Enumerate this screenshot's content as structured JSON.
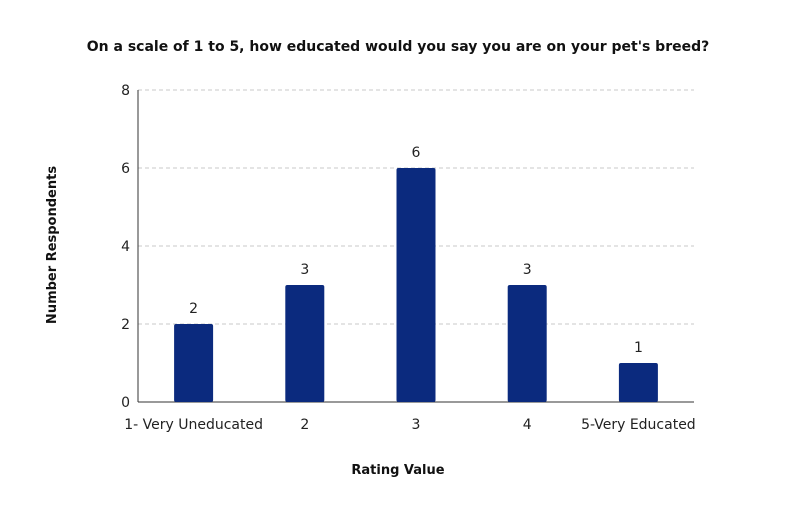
{
  "chart_data": {
    "type": "bar",
    "title": "On a scale of 1 to 5, how educated would you say you are on your pet's breed?",
    "xlabel": "Rating Value",
    "ylabel": "Number Respondents",
    "categories": [
      "1- Very Uneducated",
      "2",
      "3",
      "4",
      "5-Very Educated"
    ],
    "values": [
      2,
      3,
      6,
      3,
      1
    ],
    "data_labels": [
      "2",
      "3",
      "6",
      "3",
      "1"
    ],
    "ylim": [
      0,
      8
    ],
    "yticks": [
      0,
      2,
      4,
      6,
      8
    ],
    "ytick_labels": [
      "0",
      "2",
      "4",
      "6",
      "8"
    ],
    "grid": true,
    "bar_color": "#0b2a7e"
  }
}
